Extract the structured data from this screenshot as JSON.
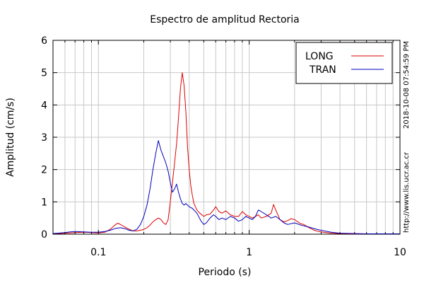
{
  "chart_data": {
    "type": "line",
    "title": "Espectro de amplitud Rectoria",
    "xlabel": "Periodo (s)",
    "ylabel": "Amplitud (cm/s)",
    "xscale": "log",
    "xlim": [
      0.05,
      10
    ],
    "ylim": [
      0,
      6
    ],
    "x_ticks": [
      {
        "value": 0.1,
        "label": "0.1"
      },
      {
        "value": 1,
        "label": "1"
      },
      {
        "value": 10,
        "label": "10"
      }
    ],
    "y_ticks": [
      {
        "value": 0,
        "label": "0"
      },
      {
        "value": 1,
        "label": "1"
      },
      {
        "value": 2,
        "label": "2"
      },
      {
        "value": 3,
        "label": "3"
      },
      {
        "value": 4,
        "label": "4"
      },
      {
        "value": 5,
        "label": "5"
      },
      {
        "value": 6,
        "label": "6"
      }
    ],
    "grid": true,
    "legend_position": "top-right",
    "side_labels": [
      "2018-10-08 07:54:59 PM",
      "http://www.lis.ucr.ac.cr"
    ],
    "series": [
      {
        "name": "LONG",
        "color": "#dd0000",
        "x": [
          0.05,
          0.06,
          0.07,
          0.08,
          0.09,
          0.1,
          0.11,
          0.12,
          0.13,
          0.135,
          0.14,
          0.15,
          0.16,
          0.17,
          0.18,
          0.19,
          0.2,
          0.21,
          0.22,
          0.23,
          0.24,
          0.25,
          0.26,
          0.27,
          0.28,
          0.29,
          0.3,
          0.31,
          0.32,
          0.33,
          0.34,
          0.35,
          0.36,
          0.37,
          0.38,
          0.39,
          0.4,
          0.41,
          0.42,
          0.43,
          0.45,
          0.47,
          0.5,
          0.52,
          0.55,
          0.58,
          0.6,
          0.63,
          0.66,
          0.7,
          0.75,
          0.8,
          0.85,
          0.9,
          0.95,
          1.0,
          1.05,
          1.1,
          1.15,
          1.2,
          1.3,
          1.4,
          1.45,
          1.5,
          1.55,
          1.6,
          1.7,
          1.8,
          1.9,
          2.0,
          2.1,
          2.2,
          2.3,
          2.5,
          2.7,
          2.9,
          3.1,
          3.5,
          4,
          5,
          6,
          8,
          10
        ],
        "y": [
          0.01,
          0.03,
          0.05,
          0.06,
          0.05,
          0.04,
          0.06,
          0.15,
          0.3,
          0.34,
          0.3,
          0.22,
          0.15,
          0.1,
          0.1,
          0.12,
          0.15,
          0.2,
          0.28,
          0.38,
          0.45,
          0.5,
          0.45,
          0.35,
          0.3,
          0.45,
          1.0,
          1.6,
          2.2,
          2.8,
          3.6,
          4.5,
          5.0,
          4.6,
          3.8,
          2.7,
          2.0,
          1.5,
          1.2,
          0.95,
          0.75,
          0.65,
          0.55,
          0.6,
          0.62,
          0.75,
          0.85,
          0.7,
          0.65,
          0.72,
          0.6,
          0.55,
          0.55,
          0.7,
          0.6,
          0.55,
          0.5,
          0.55,
          0.6,
          0.5,
          0.55,
          0.65,
          0.92,
          0.75,
          0.6,
          0.45,
          0.38,
          0.42,
          0.48,
          0.45,
          0.38,
          0.32,
          0.3,
          0.2,
          0.12,
          0.08,
          0.06,
          0.03,
          0.02,
          0.01,
          0.01,
          0.01,
          0.01
        ]
      },
      {
        "name": "TRAN",
        "color": "#0000bb",
        "x": [
          0.05,
          0.06,
          0.065,
          0.07,
          0.08,
          0.09,
          0.1,
          0.11,
          0.12,
          0.13,
          0.14,
          0.15,
          0.16,
          0.17,
          0.18,
          0.19,
          0.2,
          0.21,
          0.22,
          0.23,
          0.24,
          0.25,
          0.26,
          0.27,
          0.28,
          0.29,
          0.3,
          0.31,
          0.32,
          0.33,
          0.34,
          0.35,
          0.36,
          0.37,
          0.38,
          0.4,
          0.42,
          0.45,
          0.48,
          0.5,
          0.52,
          0.55,
          0.58,
          0.6,
          0.63,
          0.66,
          0.7,
          0.75,
          0.8,
          0.85,
          0.9,
          0.95,
          1.0,
          1.05,
          1.1,
          1.15,
          1.2,
          1.3,
          1.4,
          1.5,
          1.6,
          1.7,
          1.8,
          2.0,
          2.2,
          2.5,
          2.8,
          3.0,
          3.5,
          4,
          5,
          6,
          8,
          10
        ],
        "y": [
          0.02,
          0.05,
          0.07,
          0.08,
          0.07,
          0.06,
          0.06,
          0.08,
          0.12,
          0.18,
          0.2,
          0.17,
          0.12,
          0.1,
          0.15,
          0.3,
          0.55,
          0.9,
          1.4,
          2.0,
          2.5,
          2.9,
          2.6,
          2.4,
          2.2,
          1.95,
          1.6,
          1.3,
          1.4,
          1.55,
          1.3,
          1.1,
          0.95,
          0.9,
          0.95,
          0.85,
          0.8,
          0.65,
          0.4,
          0.3,
          0.35,
          0.5,
          0.6,
          0.55,
          0.45,
          0.5,
          0.45,
          0.55,
          0.5,
          0.4,
          0.45,
          0.55,
          0.5,
          0.45,
          0.55,
          0.75,
          0.7,
          0.6,
          0.5,
          0.55,
          0.45,
          0.35,
          0.3,
          0.35,
          0.28,
          0.22,
          0.15,
          0.12,
          0.06,
          0.03,
          0.02,
          0.01,
          0.01,
          0.01
        ]
      }
    ]
  }
}
